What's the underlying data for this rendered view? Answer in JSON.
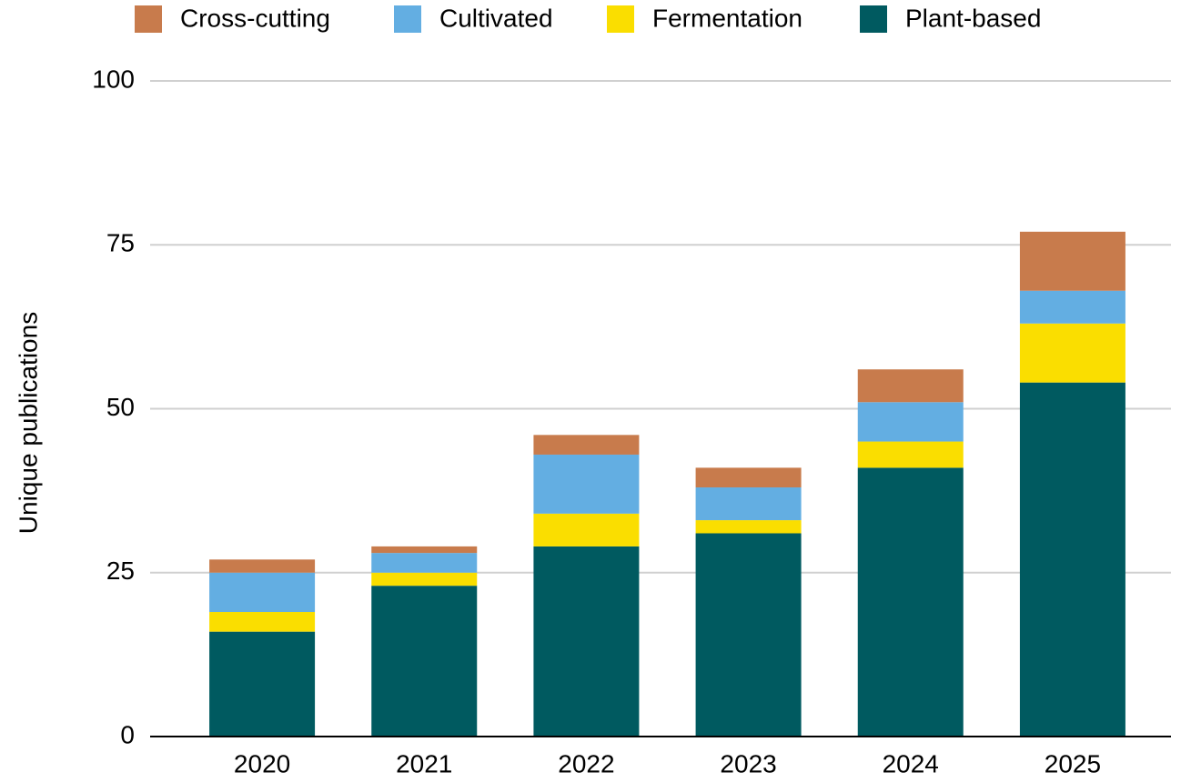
{
  "chart_data": {
    "type": "stacked_bar",
    "ylabel": "Unique publications",
    "categories": [
      "2020",
      "2021",
      "2022",
      "2023",
      "2024",
      "2025"
    ],
    "series": [
      {
        "name": "Cross-cutting",
        "color": "#c87b4c",
        "values": [
          2,
          1,
          3,
          3,
          5,
          9
        ]
      },
      {
        "name": "Cultivated",
        "color": "#63aee2",
        "values": [
          6,
          3,
          9,
          5,
          6,
          5
        ]
      },
      {
        "name": "Fermentation",
        "color": "#fade00",
        "values": [
          3,
          2,
          5,
          2,
          4,
          9
        ]
      },
      {
        "name": "Plant-based",
        "color": "#005a60",
        "values": [
          16,
          23,
          29,
          31,
          41,
          54
        ]
      }
    ],
    "ylim": [
      0,
      100
    ],
    "yticks": [
      0,
      25,
      50,
      75,
      100
    ],
    "grid": true,
    "legend": "top"
  }
}
